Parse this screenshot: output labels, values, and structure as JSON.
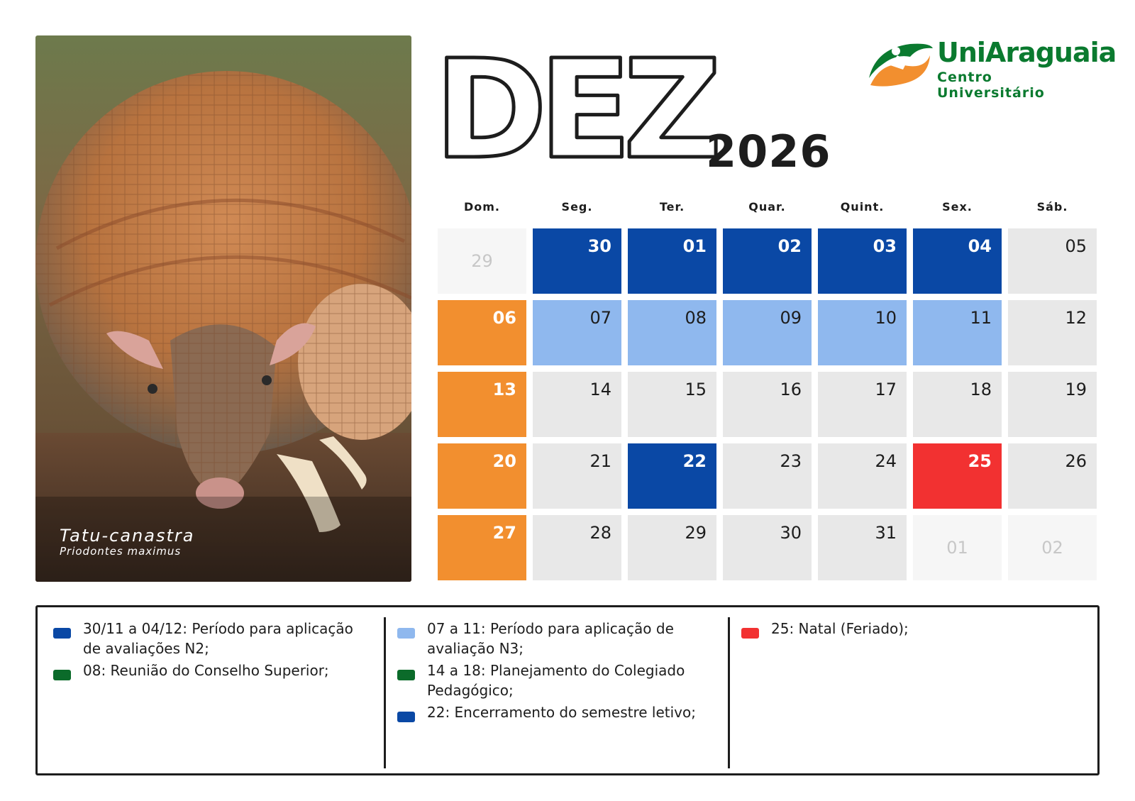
{
  "photo": {
    "common_name": "Tatu-canastra",
    "scientific_name": "Priodontes maximus"
  },
  "header": {
    "month": "DEZ",
    "year": "2026"
  },
  "logo": {
    "name": "UniAraguaia",
    "subtitle": "Centro Universitário",
    "colors": {
      "green": "#0a7a2f",
      "orange": "#f28f2f"
    }
  },
  "calendar": {
    "weekdays": [
      "Dom.",
      "Seg.",
      "Ter.",
      "Quar.",
      "Quint.",
      "Sex.",
      "Sáb."
    ],
    "weeks": [
      [
        {
          "day": "29",
          "style": "muted"
        },
        {
          "day": "30",
          "style": "dark"
        },
        {
          "day": "01",
          "style": "dark"
        },
        {
          "day": "02",
          "style": "dark"
        },
        {
          "day": "03",
          "style": "dark"
        },
        {
          "day": "04",
          "style": "dark"
        },
        {
          "day": "05",
          "style": "plain"
        }
      ],
      [
        {
          "day": "06",
          "style": "orange"
        },
        {
          "day": "07",
          "style": "light"
        },
        {
          "day": "08",
          "style": "light"
        },
        {
          "day": "09",
          "style": "light"
        },
        {
          "day": "10",
          "style": "light"
        },
        {
          "day": "11",
          "style": "light"
        },
        {
          "day": "12",
          "style": "plain"
        }
      ],
      [
        {
          "day": "13",
          "style": "orange"
        },
        {
          "day": "14",
          "style": "plain"
        },
        {
          "day": "15",
          "style": "plain"
        },
        {
          "day": "16",
          "style": "plain"
        },
        {
          "day": "17",
          "style": "plain"
        },
        {
          "day": "18",
          "style": "plain"
        },
        {
          "day": "19",
          "style": "plain"
        }
      ],
      [
        {
          "day": "20",
          "style": "orange"
        },
        {
          "day": "21",
          "style": "plain"
        },
        {
          "day": "22",
          "style": "dark"
        },
        {
          "day": "23",
          "style": "plain"
        },
        {
          "day": "24",
          "style": "plain"
        },
        {
          "day": "25",
          "style": "red"
        },
        {
          "day": "26",
          "style": "plain"
        }
      ],
      [
        {
          "day": "27",
          "style": "orange"
        },
        {
          "day": "28",
          "style": "plain"
        },
        {
          "day": "29",
          "style": "plain"
        },
        {
          "day": "30",
          "style": "plain"
        },
        {
          "day": "31",
          "style": "plain"
        },
        {
          "day": "01",
          "style": "muted"
        },
        {
          "day": "02",
          "style": "muted"
        }
      ]
    ],
    "colors": {
      "dark_blue": "#0a48a5",
      "light_blue": "#8fb8ee",
      "orange": "#f28f2f",
      "red": "#f23131",
      "plain": "#e8e8e8",
      "muted": "#f6f6f6"
    }
  },
  "legend": {
    "columns": [
      [
        {
          "color": "#0a48a5",
          "text": "30/11 a 04/12: Período para aplicação de avaliações N2;"
        },
        {
          "color": "#0b6b2a",
          "text": "08: Reunião do Conselho Superior;"
        }
      ],
      [
        {
          "color": "#8fb8ee",
          "text": "07 a 11: Período para aplicação de avaliação N3;"
        },
        {
          "color": "#0b6b2a",
          "text": "14 a 18: Planejamento do Colegiado Pedagógico;"
        },
        {
          "color": "#0a48a5",
          "text": "22: Encerramento do semestre letivo;"
        }
      ],
      [
        {
          "color": "#f23131",
          "text": "25: Natal (Feriado);"
        }
      ]
    ]
  }
}
